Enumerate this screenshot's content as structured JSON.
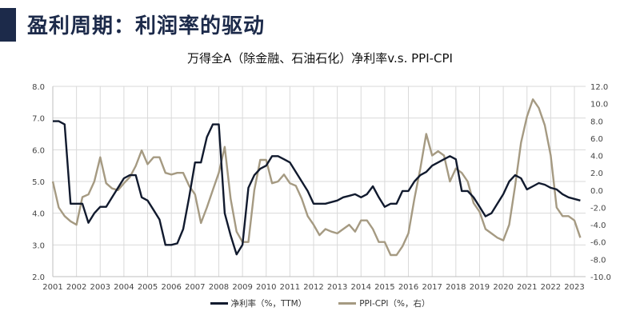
{
  "header": {
    "title": "盈利周期：利润率的驱动",
    "accent_color": "#1c2a4a"
  },
  "chart_data": {
    "type": "line",
    "title": "万得全A（除金融、石油石化）净利率v.s. PPI-CPI",
    "xlabel": "",
    "ylabel": "",
    "ylabel_right": "",
    "categories": [
      "2001",
      "2002",
      "2003",
      "2004",
      "2005",
      "2006",
      "2007",
      "2008",
      "2009",
      "2010",
      "2011",
      "2012",
      "2013",
      "2014",
      "2015",
      "2016",
      "2017",
      "2018",
      "2019",
      "2020",
      "2021",
      "2022",
      "2023"
    ],
    "ylim": [
      2.0,
      8.0
    ],
    "ylim_right": [
      -10.0,
      12.0
    ],
    "yticks": [
      "8.0",
      "7.0",
      "6.0",
      "5.0",
      "4.0",
      "3.0",
      "2.0"
    ],
    "yticks_right": [
      "12.0",
      "10.0",
      "8.0",
      "6.0",
      "4.0",
      "2.0",
      "0.0",
      "-2.0",
      "-4.0",
      "-6.0",
      "-8.0",
      "-10.0"
    ],
    "grid": true,
    "legend_position": "bottom",
    "series": [
      {
        "name": "净利率（%，TTM）",
        "axis": "left",
        "color": "#111a2e",
        "x": [
          2001.0,
          2001.25,
          2001.5,
          2001.75,
          2002.0,
          2002.25,
          2002.5,
          2002.75,
          2003.0,
          2003.25,
          2003.5,
          2003.75,
          2004.0,
          2004.25,
          2004.5,
          2004.75,
          2005.0,
          2005.25,
          2005.5,
          2005.75,
          2006.0,
          2006.25,
          2006.5,
          2006.75,
          2007.0,
          2007.25,
          2007.5,
          2007.75,
          2008.0,
          2008.25,
          2008.5,
          2008.75,
          2009.0,
          2009.25,
          2009.5,
          2009.75,
          2010.0,
          2010.25,
          2010.5,
          2010.75,
          2011.0,
          2011.25,
          2011.5,
          2011.75,
          2012.0,
          2012.25,
          2012.5,
          2012.75,
          2013.0,
          2013.25,
          2013.5,
          2013.75,
          2014.0,
          2014.25,
          2014.5,
          2014.75,
          2015.0,
          2015.25,
          2015.5,
          2015.75,
          2016.0,
          2016.25,
          2016.5,
          2016.75,
          2017.0,
          2017.25,
          2017.5,
          2017.75,
          2018.0,
          2018.25,
          2018.5,
          2018.75,
          2019.0,
          2019.25,
          2019.5,
          2019.75,
          2020.0,
          2020.25,
          2020.5,
          2020.75,
          2021.0,
          2021.25,
          2021.5,
          2021.75,
          2022.0,
          2022.25,
          2022.5,
          2022.75,
          2023.0,
          2023.25
        ],
        "values": [
          6.9,
          6.9,
          6.8,
          4.3,
          4.3,
          4.3,
          3.7,
          4.0,
          4.2,
          4.2,
          4.5,
          4.8,
          5.1,
          5.2,
          5.2,
          4.5,
          4.4,
          4.1,
          3.8,
          3.0,
          3.0,
          3.05,
          3.5,
          4.5,
          5.6,
          5.6,
          6.4,
          6.8,
          6.8,
          4.0,
          3.3,
          2.7,
          3.0,
          4.8,
          5.2,
          5.4,
          5.5,
          5.8,
          5.8,
          5.7,
          5.6,
          5.3,
          5.0,
          4.7,
          4.3,
          4.3,
          4.3,
          4.35,
          4.4,
          4.5,
          4.55,
          4.6,
          4.5,
          4.6,
          4.85,
          4.5,
          4.2,
          4.3,
          4.3,
          4.7,
          4.7,
          5.0,
          5.2,
          5.3,
          5.5,
          5.6,
          5.7,
          5.8,
          5.7,
          4.7,
          4.7,
          4.5,
          4.2,
          3.9,
          4.0,
          4.3,
          4.6,
          5.0,
          5.2,
          5.1,
          4.75,
          4.85,
          4.95,
          4.9,
          4.8,
          4.75,
          4.6,
          4.5,
          4.45,
          4.4
        ]
      },
      {
        "name": "PPI-CPI（%，右）",
        "axis": "right",
        "color": "#a59a82",
        "x": [
          2001.0,
          2001.25,
          2001.5,
          2001.75,
          2002.0,
          2002.25,
          2002.5,
          2002.75,
          2003.0,
          2003.25,
          2003.5,
          2003.75,
          2004.0,
          2004.25,
          2004.5,
          2004.75,
          2005.0,
          2005.25,
          2005.5,
          2005.75,
          2006.0,
          2006.25,
          2006.5,
          2006.75,
          2007.0,
          2007.25,
          2007.5,
          2007.75,
          2008.0,
          2008.25,
          2008.5,
          2008.75,
          2009.0,
          2009.25,
          2009.5,
          2009.75,
          2010.0,
          2010.25,
          2010.5,
          2010.75,
          2011.0,
          2011.25,
          2011.5,
          2011.75,
          2012.0,
          2012.25,
          2012.5,
          2012.75,
          2013.0,
          2013.25,
          2013.5,
          2013.75,
          2014.0,
          2014.25,
          2014.5,
          2014.75,
          2015.0,
          2015.25,
          2015.5,
          2015.75,
          2016.0,
          2016.25,
          2016.5,
          2016.75,
          2017.0,
          2017.25,
          2017.5,
          2017.75,
          2018.0,
          2018.25,
          2018.5,
          2018.75,
          2019.0,
          2019.25,
          2019.5,
          2019.75,
          2020.0,
          2020.25,
          2020.5,
          2020.75,
          2021.0,
          2021.25,
          2021.5,
          2021.75,
          2022.0,
          2022.25,
          2022.5,
          2022.75,
          2023.0,
          2023.25
        ],
        "values": [
          1.0,
          -2.0,
          -3.0,
          -3.6,
          -4.0,
          -0.8,
          -0.5,
          1.0,
          3.8,
          0.8,
          0.2,
          0.0,
          0.8,
          1.5,
          2.8,
          4.6,
          3.0,
          3.8,
          3.8,
          2.0,
          1.8,
          2.0,
          2.0,
          0.5,
          -0.5,
          -3.8,
          -2.0,
          0.0,
          2.0,
          5.0,
          -1.0,
          -4.8,
          -6.0,
          -6.0,
          0.0,
          3.5,
          3.5,
          0.8,
          1.0,
          1.8,
          0.8,
          0.5,
          -1.0,
          -3.0,
          -4.0,
          -5.2,
          -4.5,
          -4.8,
          -5.0,
          -4.5,
          -4.0,
          -4.8,
          -3.5,
          -3.5,
          -4.5,
          -6.0,
          -6.0,
          -7.5,
          -7.5,
          -6.5,
          -5.0,
          -1.0,
          2.5,
          6.5,
          4.0,
          4.5,
          4.0,
          1.0,
          2.5,
          2.0,
          1.0,
          -1.5,
          -2.5,
          -4.5,
          -5.0,
          -5.5,
          -5.8,
          -4.0,
          0.5,
          5.5,
          8.5,
          10.5,
          9.5,
          7.5,
          4.0,
          -2.0,
          -3.0,
          -3.0,
          -3.5,
          -5.5
        ]
      }
    ]
  },
  "legend": [
    {
      "label": "净利率（%，TTM）",
      "color": "#111a2e"
    },
    {
      "label": "PPI-CPI（%，右）",
      "color": "#a59a82"
    }
  ]
}
